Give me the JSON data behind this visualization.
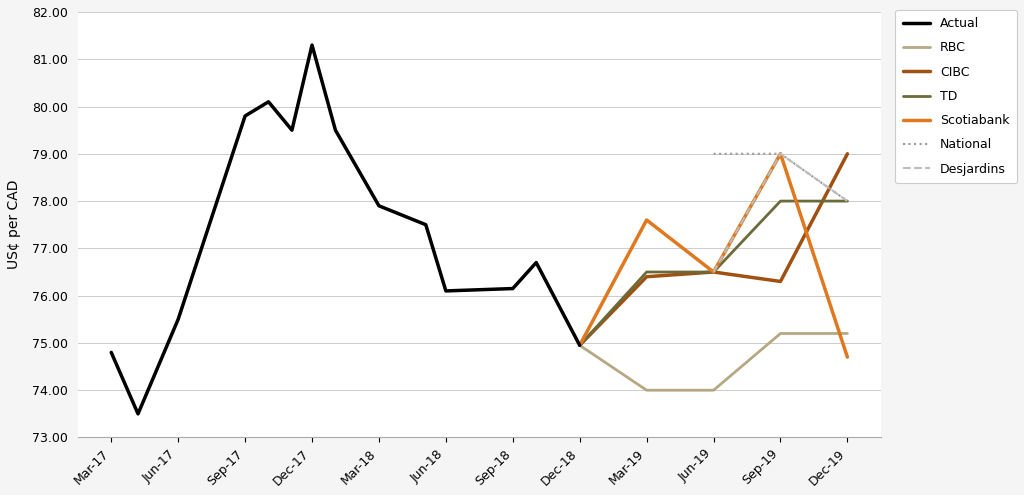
{
  "ylabel": "US¢ per CAD",
  "background_color": "#f5f5f5",
  "plot_bg_color": "#ffffff",
  "ylim": [
    73.0,
    82.0
  ],
  "yticks": [
    73.0,
    74.0,
    75.0,
    76.0,
    77.0,
    78.0,
    79.0,
    80.0,
    81.0,
    82.0
  ],
  "xtick_labels": [
    "Mar-17",
    "Jun-17",
    "Sep-17",
    "Dec-17",
    "Mar-18",
    "Jun-18",
    "Sep-18",
    "Dec-18",
    "Mar-19",
    "Jun-19",
    "Sep-19",
    "Dec-19"
  ],
  "actual_x": [
    0,
    0.4,
    1.0,
    2.0,
    2.35,
    2.7,
    3.0,
    3.35,
    4.0,
    4.7,
    5.0,
    6.0,
    6.35,
    7.0
  ],
  "actual_y": [
    74.8,
    73.5,
    75.5,
    79.8,
    80.1,
    79.5,
    81.3,
    79.5,
    77.9,
    77.5,
    76.1,
    76.15,
    76.7,
    74.95
  ],
  "forecast_x": [
    7,
    8,
    9,
    10,
    11
  ],
  "rbc_y": [
    74.95,
    74.0,
    74.0,
    75.2,
    75.2
  ],
  "cibc_y": [
    74.95,
    76.4,
    76.5,
    76.3,
    79.0
  ],
  "td_y": [
    74.95,
    76.5,
    76.5,
    78.0,
    78.0
  ],
  "scotiabank_y": [
    74.95,
    77.6,
    76.5,
    79.0,
    74.7
  ],
  "national_y": [
    74.95,
    null,
    79.0,
    79.0,
    78.0
  ],
  "desjardins_y": [
    74.95,
    null,
    76.5,
    79.0,
    78.0
  ],
  "color_actual": "#000000",
  "color_rbc": "#b5a882",
  "color_cibc": "#a05010",
  "color_td": "#6b6b3a",
  "color_scotiabank": "#e07820",
  "color_national": "#999999",
  "color_desjardins": "#bbbbbb",
  "lw_actual": 2.5,
  "lw_rbc": 2.0,
  "lw_cibc": 2.5,
  "lw_td": 2.0,
  "lw_scotiabank": 2.5,
  "lw_national": 1.5,
  "lw_desjardins": 1.5
}
